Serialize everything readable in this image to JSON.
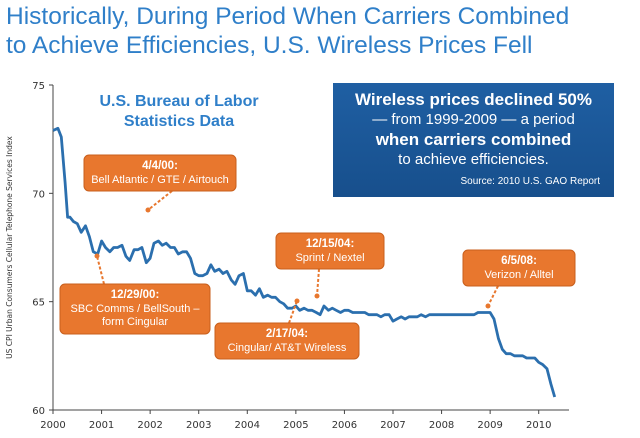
{
  "headline": {
    "line1": "Historically, During Period When Carriers Combined",
    "line2": "to Achieve Efficiencies, U.S. Wireless Prices Fell"
  },
  "chart_data": {
    "type": "line",
    "title": "U.S. Bureau of Labor Statistics Data",
    "title_lines": [
      "U.S. Bureau of Labor",
      "Statistics Data"
    ],
    "ylabel": "US CPI Urban Consumers Cellular Telephone Services Index",
    "xlabel": "",
    "xlim": [
      2000,
      2010.5
    ],
    "ylim": [
      60,
      75
    ],
    "x_ticks": [
      "2000",
      "2001",
      "2002",
      "2003",
      "2004",
      "2005",
      "2006",
      "2007",
      "2008",
      "2009",
      "2010"
    ],
    "y_ticks": [
      "75",
      "70",
      "65",
      "60"
    ],
    "line_color": "#2b6fae",
    "series": [
      {
        "x": [
          2000.0,
          2000.1,
          2000.17,
          2000.25,
          2000.3,
          2000.35,
          2000.42,
          2000.5,
          2000.58,
          2000.67,
          2000.75,
          2000.83,
          2000.92,
          2001.0,
          2001.08,
          2001.17,
          2001.25,
          2001.33,
          2001.42,
          2001.5,
          2001.58,
          2001.67,
          2001.75,
          2001.83,
          2001.92,
          2002.0,
          2002.08,
          2002.17,
          2002.25,
          2002.33,
          2002.42,
          2002.5,
          2002.58,
          2002.67,
          2002.75,
          2002.83,
          2002.92,
          2003.0,
          2003.08,
          2003.17,
          2003.25,
          2003.33,
          2003.42,
          2003.5,
          2003.58,
          2003.67,
          2003.75,
          2003.83,
          2003.92,
          2004.0,
          2004.08,
          2004.17,
          2004.25,
          2004.33,
          2004.42,
          2004.5,
          2004.58,
          2004.67,
          2004.75,
          2004.83,
          2004.92,
          2005.0,
          2005.08,
          2005.17,
          2005.25,
          2005.33,
          2005.42,
          2005.5,
          2005.58,
          2005.67,
          2005.75,
          2005.83,
          2005.92,
          2006.0,
          2006.08,
          2006.17,
          2006.25,
          2006.33,
          2006.42,
          2006.5,
          2006.58,
          2006.67,
          2006.75,
          2006.83,
          2006.92,
          2007.0,
          2007.08,
          2007.17,
          2007.25,
          2007.33,
          2007.42,
          2007.5,
          2007.58,
          2007.67,
          2007.75,
          2007.83,
          2007.92,
          2008.0,
          2008.08,
          2008.17,
          2008.25,
          2008.33,
          2008.42,
          2008.5,
          2008.58,
          2008.67,
          2008.75,
          2008.83,
          2008.92,
          2009.0,
          2009.08,
          2009.17,
          2009.25,
          2009.33,
          2009.42,
          2009.5,
          2009.58,
          2009.67,
          2009.75,
          2009.83,
          2009.92,
          2010.0,
          2010.08,
          2010.17,
          2010.25,
          2010.33
        ],
        "values": [
          72.9,
          73.0,
          72.6,
          70.5,
          68.9,
          68.9,
          68.7,
          68.6,
          68.2,
          68.5,
          68.0,
          67.3,
          67.2,
          67.8,
          67.5,
          67.3,
          67.5,
          67.5,
          67.6,
          67.1,
          66.9,
          67.4,
          67.4,
          67.5,
          66.8,
          67.0,
          67.7,
          67.8,
          67.6,
          67.7,
          67.5,
          67.5,
          67.2,
          67.3,
          67.3,
          67.0,
          66.3,
          66.2,
          66.2,
          66.3,
          66.7,
          66.4,
          66.5,
          66.3,
          66.4,
          66.0,
          65.8,
          66.2,
          66.3,
          65.5,
          65.5,
          65.3,
          65.6,
          65.2,
          65.3,
          65.2,
          65.2,
          65.0,
          64.9,
          64.7,
          64.7,
          64.8,
          64.6,
          64.7,
          64.6,
          64.6,
          64.5,
          64.4,
          64.8,
          64.6,
          64.7,
          64.6,
          64.5,
          64.6,
          64.6,
          64.5,
          64.5,
          64.5,
          64.5,
          64.4,
          64.4,
          64.4,
          64.3,
          64.4,
          64.4,
          64.1,
          64.2,
          64.3,
          64.2,
          64.3,
          64.3,
          64.3,
          64.4,
          64.3,
          64.4,
          64.4,
          64.4,
          64.4,
          64.4,
          64.4,
          64.4,
          64.4,
          64.4,
          64.4,
          64.4,
          64.4,
          64.5,
          64.5,
          64.5,
          64.5,
          64.2,
          63.3,
          62.8,
          62.6,
          62.6,
          62.5,
          62.5,
          62.5,
          62.4,
          62.4,
          62.4,
          62.2,
          62.1,
          61.9,
          61.2,
          60.6
        ]
      }
    ],
    "callouts": [
      {
        "date": "4/4/00:",
        "text": [
          "Bell Atlantic / GTE / Airtouch"
        ]
      },
      {
        "date": "12/29/00:",
        "text": [
          "SBC Comms / BellSouth –",
          "form Cingular"
        ]
      },
      {
        "date": "12/15/04:",
        "text": [
          "Sprint / Nextel"
        ]
      },
      {
        "date": "2/17/04:",
        "text": [
          "Cingular/ AT&T Wireless"
        ]
      },
      {
        "date": "6/5/08:",
        "text": [
          "Verizon / Alltel"
        ]
      }
    ],
    "callout_color": "#e8772e"
  },
  "infobox": {
    "line1": "Wireless prices declined 50%",
    "line2": "— from 1999-2009 — a period",
    "line3": "when carriers combined",
    "line4": "to achieve efficiencies.",
    "source": "Source: 2010 U.S. GAO Report"
  }
}
